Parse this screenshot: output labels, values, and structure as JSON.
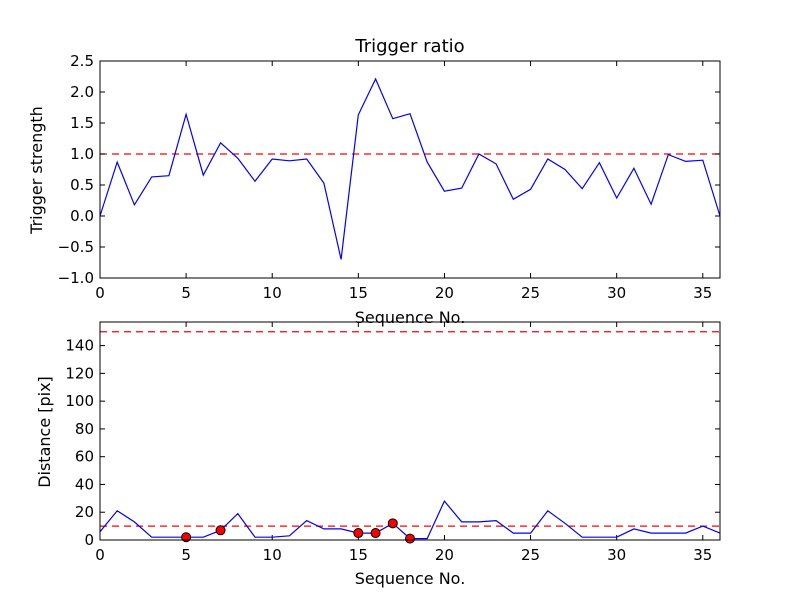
{
  "colors": {
    "line": "#0000ff",
    "threshold": "#ff0000",
    "marker_fill": "#ff0000",
    "marker_edge": "#000000",
    "axes": "#000000",
    "background": "#ffffff"
  },
  "chart_data": [
    {
      "type": "line",
      "title": "Trigger ratio",
      "xlabel": "Sequence No.",
      "ylabel": "Trigger strength",
      "xlim": [
        0,
        36
      ],
      "ylim": [
        -1.0,
        2.5
      ],
      "xticks": [
        "0",
        "5",
        "10",
        "15",
        "20",
        "25",
        "30",
        "35"
      ],
      "yticks": [
        "−1.0",
        "−0.5",
        "0.0",
        "0.5",
        "1.0",
        "1.5",
        "2.0",
        "2.5"
      ],
      "grid": false,
      "series": [
        {
          "x": [
            0,
            1,
            2,
            3,
            4,
            5,
            6,
            7,
            8,
            9,
            10,
            11,
            12,
            13,
            14,
            15,
            16,
            17,
            18,
            19,
            20,
            21,
            22,
            23,
            24,
            25,
            26,
            27,
            28,
            29,
            30,
            31,
            32,
            33,
            34,
            35,
            36
          ],
          "y": [
            0.0,
            0.87,
            0.18,
            0.63,
            0.65,
            1.64,
            0.66,
            1.18,
            0.93,
            0.56,
            0.92,
            0.89,
            0.92,
            0.53,
            -0.7,
            1.63,
            2.21,
            1.57,
            1.65,
            0.87,
            0.4,
            0.45,
            1.0,
            0.84,
            0.27,
            0.43,
            0.92,
            0.75,
            0.44,
            0.86,
            0.29,
            0.77,
            0.19,
            0.99,
            0.88,
            0.9,
            0.0
          ]
        }
      ],
      "reference_lines": [
        {
          "y": 1.0,
          "style": "dashed"
        }
      ]
    },
    {
      "type": "line",
      "title": "",
      "xlabel": "Sequence No.",
      "ylabel": "Distance [pix]",
      "xlim": [
        0,
        36
      ],
      "ylim": [
        0,
        157
      ],
      "xticks": [
        "0",
        "5",
        "10",
        "15",
        "20",
        "25",
        "30",
        "35"
      ],
      "yticks": [
        "0",
        "20",
        "40",
        "60",
        "80",
        "100",
        "120",
        "140"
      ],
      "grid": false,
      "series": [
        {
          "x": [
            0,
            1,
            2,
            3,
            4,
            5,
            6,
            7,
            8,
            9,
            10,
            11,
            12,
            13,
            14,
            15,
            16,
            17,
            18,
            19,
            20,
            21,
            22,
            23,
            24,
            25,
            26,
            27,
            28,
            29,
            30,
            31,
            32,
            33,
            34,
            35,
            36
          ],
          "y": [
            6,
            21,
            13,
            2,
            2,
            2,
            2,
            7,
            19,
            2,
            2,
            3,
            14,
            8,
            8,
            5,
            5,
            12,
            1,
            1,
            28,
            13,
            13,
            14,
            5,
            5,
            21,
            12,
            2,
            2,
            2,
            8,
            5,
            5,
            5,
            10,
            5
          ]
        }
      ],
      "markers": {
        "x": [
          5,
          7,
          15,
          16,
          17,
          18
        ],
        "y": [
          2,
          7,
          5,
          5,
          12,
          1
        ]
      },
      "reference_lines": [
        {
          "y": 10,
          "style": "dashed"
        },
        {
          "y": 150,
          "style": "dashed"
        }
      ]
    }
  ]
}
